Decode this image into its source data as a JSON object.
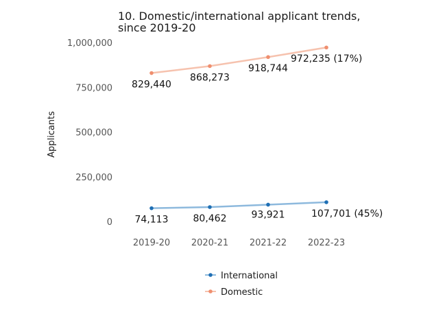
{
  "chart_data": {
    "type": "line",
    "title_lines": [
      "10. Domestic/international applicant trends,",
      "since 2019-20"
    ],
    "ylabel": "Applicants",
    "xlabel": "",
    "categories": [
      "2019-20",
      "2020-21",
      "2021-22",
      "2022-23"
    ],
    "ylim": [
      0,
      1000000
    ],
    "yticks": [
      0,
      250000,
      500000,
      750000,
      1000000
    ],
    "ytick_labels": [
      "0",
      "250,000",
      "500,000",
      "750,000",
      "1,000,000"
    ],
    "grid": false,
    "legend_position": "bottom",
    "series": [
      {
        "name": "International",
        "color": "#1f6fb4",
        "line_color": "#8db9dd",
        "values": [
          74113,
          80462,
          93921,
          107701
        ],
        "labels": [
          "74,113",
          "80,462",
          "93,921",
          "107,701 (45%)"
        ]
      },
      {
        "name": "Domestic",
        "color": "#ef8f6f",
        "line_color": "#f6c2ae",
        "values": [
          829440,
          868273,
          918744,
          972235
        ],
        "labels": [
          "829,440",
          "868,273",
          "918,744",
          "972,235 (17%)"
        ]
      }
    ]
  }
}
